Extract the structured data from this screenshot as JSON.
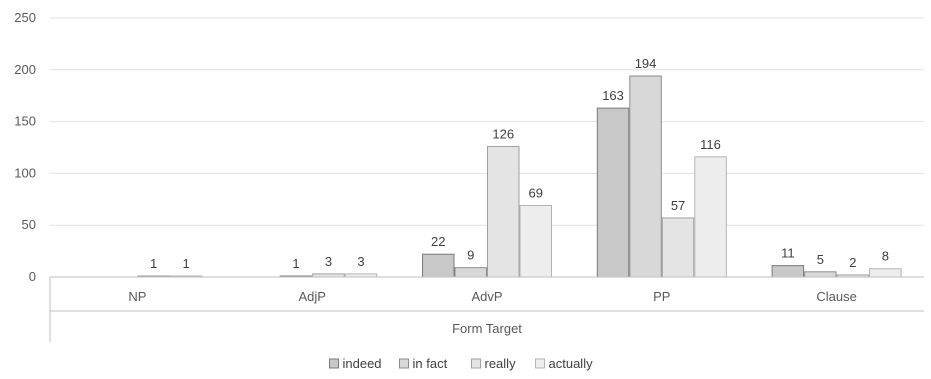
{
  "chart_data": {
    "type": "bar",
    "categories": [
      "NP",
      "AdjP",
      "AdvP",
      "PP",
      "Clause"
    ],
    "series": [
      {
        "name": "indeed",
        "values": [
          0,
          0,
          22,
          163,
          11
        ],
        "labels": [
          "",
          "",
          "22",
          "163",
          "11"
        ],
        "color": "#c8c8c8",
        "stroke": "#7a7a7a"
      },
      {
        "name": "in fact",
        "values": [
          0,
          1,
          9,
          194,
          5
        ],
        "labels": [
          "",
          "1",
          "9",
          "194",
          "5"
        ],
        "color": "#d8d8d8",
        "stroke": "#8c8c8c"
      },
      {
        "name": "really",
        "values": [
          1,
          3,
          126,
          57,
          2
        ],
        "labels": [
          "1",
          "3",
          "126",
          "57",
          "2"
        ],
        "color": "#e4e4e4",
        "stroke": "#a0a0a0"
      },
      {
        "name": "actually",
        "values": [
          1,
          3,
          69,
          116,
          8
        ],
        "labels": [
          "1",
          "3",
          "69",
          "116",
          "8"
        ],
        "color": "#ededed",
        "stroke": "#b4b4b4"
      }
    ],
    "title": "",
    "xlabel": "Form Target",
    "ylabel": "",
    "ylim": [
      0,
      250
    ],
    "yticks": [
      "0",
      "50",
      "100",
      "150",
      "200",
      "250"
    ],
    "grid": true,
    "legend_position": "bottom"
  }
}
